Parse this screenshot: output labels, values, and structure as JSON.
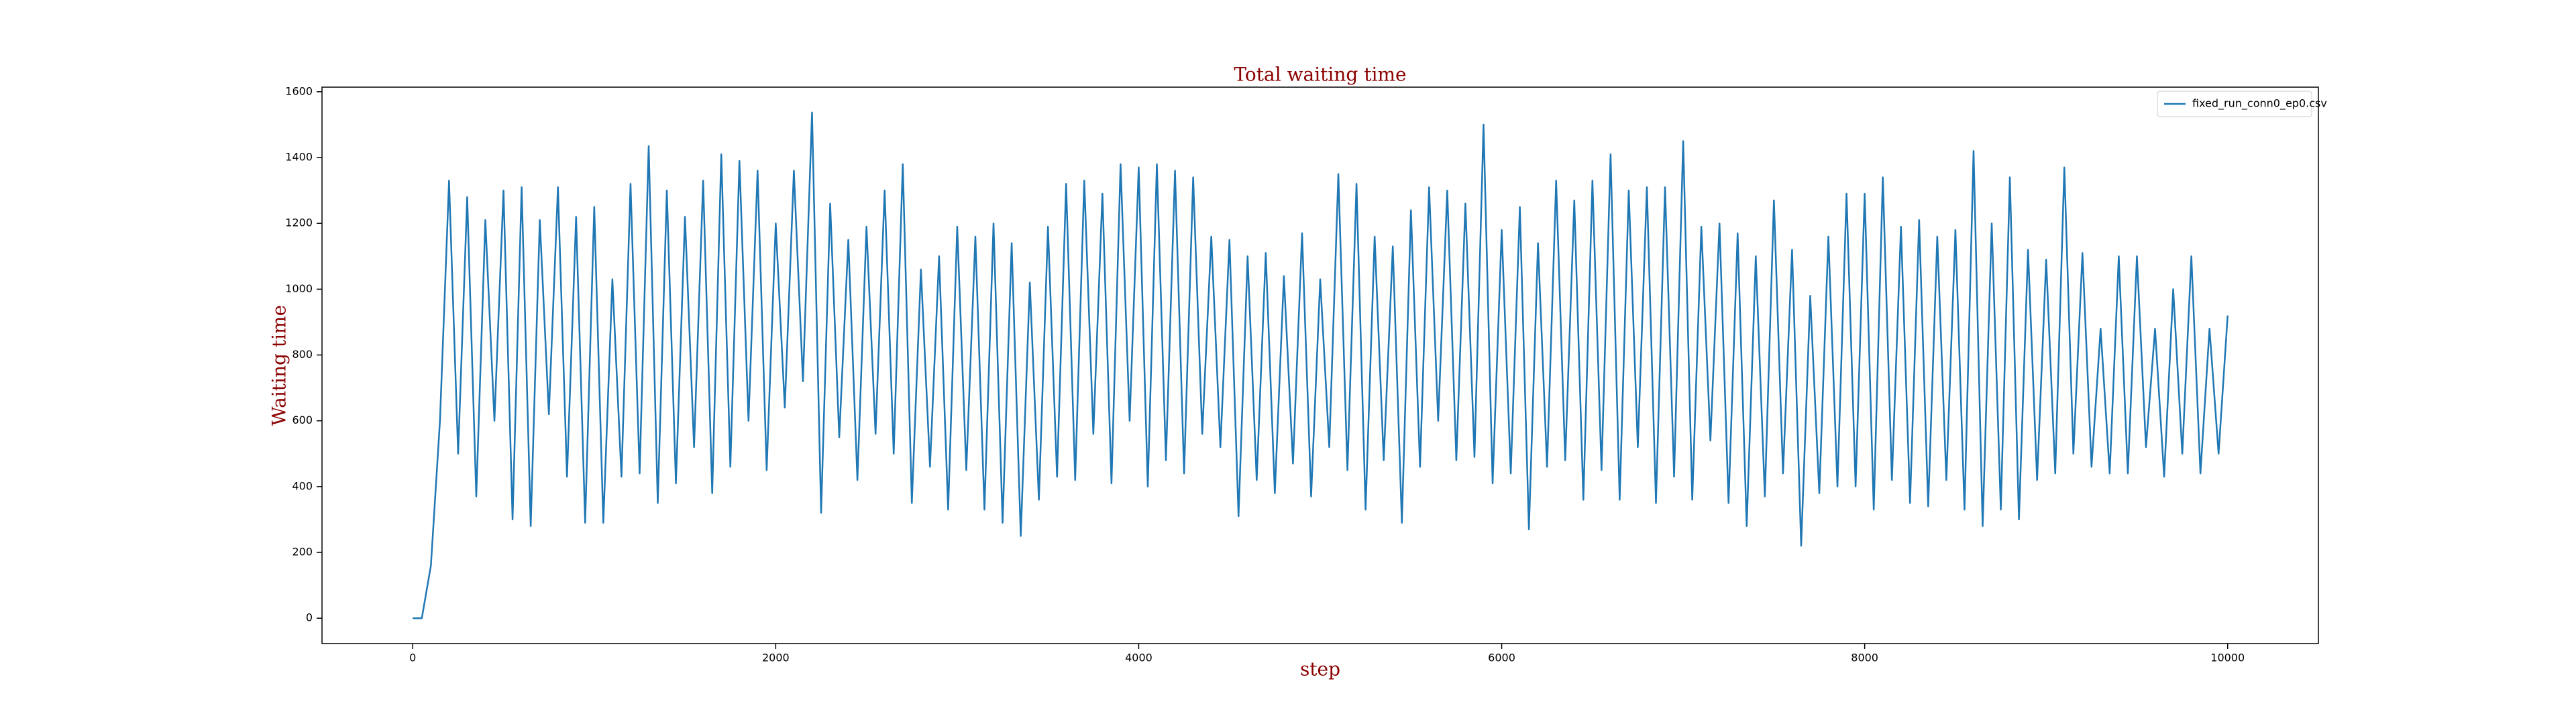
{
  "chart_data": {
    "type": "line",
    "title": "Total waiting time",
    "x_label": "step",
    "y_label": "Waiting time",
    "x": [
      0,
      50,
      100,
      150,
      200,
      250,
      300,
      350,
      400,
      450,
      500,
      550,
      600,
      650,
      700,
      750,
      800,
      850,
      900,
      950,
      1000,
      1050,
      1100,
      1150,
      1200,
      1250,
      1300,
      1350,
      1400,
      1450,
      1500,
      1550,
      1600,
      1650,
      1700,
      1750,
      1800,
      1850,
      1900,
      1950,
      2000,
      2050,
      2100,
      2150,
      2200,
      2250,
      2300,
      2350,
      2400,
      2450,
      2500,
      2550,
      2600,
      2650,
      2700,
      2750,
      2800,
      2850,
      2900,
      2950,
      3000,
      3050,
      3100,
      3150,
      3200,
      3250,
      3300,
      3350,
      3400,
      3450,
      3500,
      3550,
      3600,
      3650,
      3700,
      3750,
      3800,
      3850,
      3900,
      3950,
      4000,
      4050,
      4100,
      4150,
      4200,
      4250,
      4300,
      4350,
      4400,
      4450,
      4500,
      4550,
      4600,
      4650,
      4700,
      4750,
      4800,
      4850,
      4900,
      4950,
      5000,
      5050,
      5100,
      5150,
      5200,
      5250,
      5300,
      5350,
      5400,
      5450,
      5500,
      5550,
      5600,
      5650,
      5700,
      5750,
      5800,
      5850,
      5900,
      5950,
      6000,
      6050,
      6100,
      6150,
      6200,
      6250,
      6300,
      6350,
      6400,
      6450,
      6500,
      6550,
      6600,
      6650,
      6700,
      6750,
      6800,
      6850,
      6900,
      6950,
      7000,
      7050,
      7100,
      7150,
      7200,
      7250,
      7300,
      7350,
      7400,
      7450,
      7500,
      7550,
      7600,
      7650,
      7700,
      7750,
      7800,
      7850,
      7900,
      7950,
      8000,
      8050,
      8100,
      8150,
      8200,
      8250,
      8300,
      8350,
      8400,
      8450,
      8500,
      8550,
      8600,
      8650,
      8700,
      8750,
      8800,
      8850,
      8900,
      8950,
      9000,
      9050,
      9100,
      9150,
      9200,
      9250,
      9300,
      9350,
      9400,
      9450,
      9500,
      9550,
      9600,
      9650,
      9700,
      9750,
      9800,
      9850,
      9900,
      9950,
      10000
    ],
    "series": [
      {
        "name": "fixed_run_conn0_ep0.csv",
        "color": "#1f77b4",
        "values": [
          0,
          0,
          160,
          600,
          1330,
          500,
          1280,
          370,
          1210,
          600,
          1300,
          300,
          1310,
          280,
          1210,
          620,
          1310,
          430,
          1220,
          290,
          1250,
          290,
          1030,
          430,
          1320,
          440,
          1435,
          350,
          1300,
          410,
          1220,
          520,
          1330,
          380,
          1410,
          460,
          1390,
          600,
          1360,
          450,
          1200,
          640,
          1360,
          720,
          1537,
          320,
          1260,
          550,
          1150,
          420,
          1190,
          560,
          1300,
          500,
          1380,
          350,
          1060,
          460,
          1100,
          330,
          1190,
          450,
          1160,
          330,
          1200,
          290,
          1140,
          250,
          1020,
          360,
          1190,
          430,
          1320,
          420,
          1330,
          560,
          1290,
          410,
          1380,
          600,
          1370,
          400,
          1380,
          480,
          1360,
          440,
          1340,
          560,
          1160,
          520,
          1150,
          310,
          1100,
          420,
          1110,
          380,
          1040,
          470,
          1170,
          370,
          1030,
          520,
          1350,
          450,
          1320,
          330,
          1160,
          480,
          1130,
          290,
          1240,
          460,
          1310,
          600,
          1300,
          480,
          1260,
          490,
          1500,
          410,
          1180,
          440,
          1250,
          270,
          1140,
          460,
          1330,
          480,
          1270,
          360,
          1330,
          450,
          1410,
          360,
          1300,
          520,
          1310,
          350,
          1310,
          430,
          1450,
          360,
          1190,
          540,
          1200,
          350,
          1170,
          280,
          1100,
          370,
          1270,
          440,
          1120,
          220,
          980,
          380,
          1160,
          400,
          1290,
          400,
          1290,
          330,
          1340,
          420,
          1190,
          350,
          1210,
          340,
          1160,
          420,
          1180,
          330,
          1420,
          280,
          1200,
          330,
          1340,
          300,
          1120,
          420,
          1090,
          440,
          1370,
          500,
          1110,
          460,
          880,
          440,
          1100,
          440,
          1100,
          520,
          880,
          430,
          1000,
          500,
          1100,
          440,
          880,
          500,
          920
        ]
      }
    ],
    "xlim": [
      -500,
      10500
    ],
    "ylim": [
      -77,
      1614
    ],
    "xticks": [
      0,
      2000,
      4000,
      6000,
      8000,
      10000
    ],
    "yticks": [
      0,
      200,
      400,
      600,
      800,
      1000,
      1200,
      1400,
      1600
    ],
    "legend": "upper right"
  }
}
